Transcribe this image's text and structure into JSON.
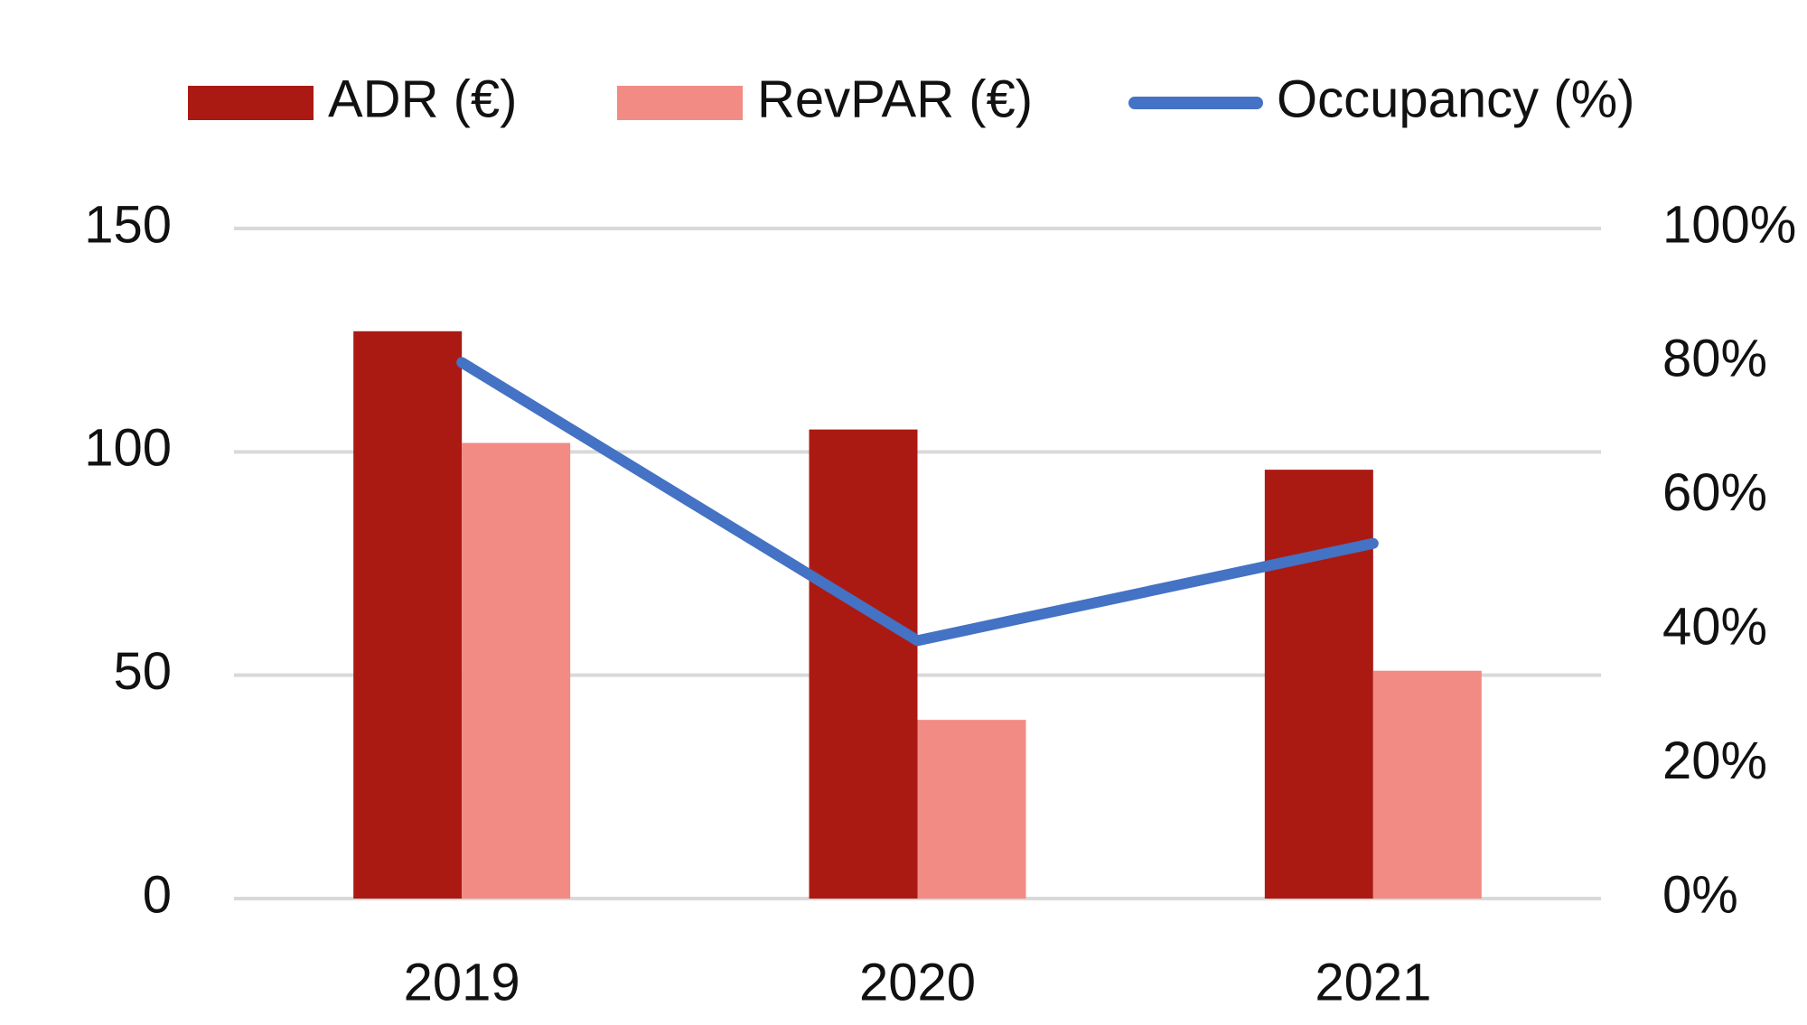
{
  "chart_data": {
    "type": "bar",
    "categories": [
      "2019",
      "2020",
      "2021"
    ],
    "series": [
      {
        "name": "ADR (€)",
        "color": "#ab1a12",
        "values": [
          127,
          105,
          96
        ]
      },
      {
        "name": "RevPAR (€)",
        "color": "#f28b84",
        "values": [
          102,
          40,
          51
        ]
      },
      {
        "name": "Occupancy (%)",
        "color": "#4472c4",
        "type": "line",
        "axis": "y2",
        "values": [
          80,
          38.5,
          53
        ]
      }
    ],
    "ylim": [
      0,
      150
    ],
    "yticks": [
      0,
      50,
      100,
      150
    ],
    "y2lim": [
      0,
      100
    ],
    "y2ticks": [
      {
        "value": 0,
        "label": "0%"
      },
      {
        "value": 20,
        "label": "20%"
      },
      {
        "value": 40,
        "label": "40%"
      },
      {
        "value": 60,
        "label": "60%"
      },
      {
        "value": 80,
        "label": "80%"
      },
      {
        "value": 100,
        "label": "100%"
      }
    ],
    "grid": true,
    "legend": "top"
  }
}
